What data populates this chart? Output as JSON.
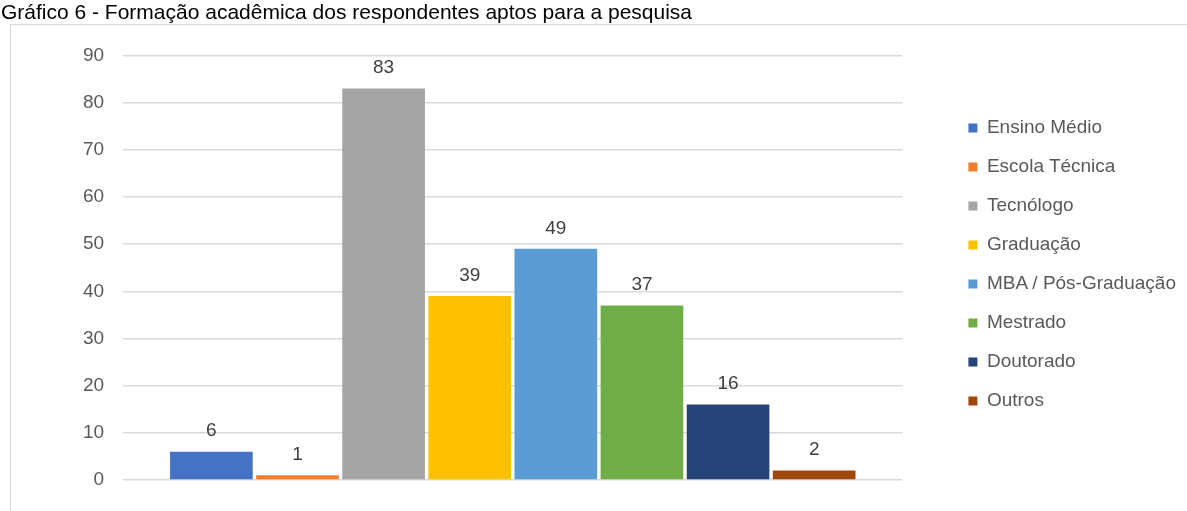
{
  "chart_data": {
    "type": "bar",
    "title": "Gráfico 6 - Formação acadêmica dos respondentes aptos para a pesquisa",
    "categories": [
      null
    ],
    "series": [
      {
        "name": "Ensino Médio",
        "color": "#4472c4",
        "values": [
          6
        ]
      },
      {
        "name": "Escola Técnica",
        "color": "#ed7d31",
        "values": [
          1
        ]
      },
      {
        "name": "Tecnólogo",
        "color": "#a5a5a5",
        "values": [
          83
        ]
      },
      {
        "name": "Graduação",
        "color": "#ffc000",
        "values": [
          39
        ]
      },
      {
        "name": "MBA / Pós-Graduação",
        "color": "#5b9bd5",
        "values": [
          49
        ]
      },
      {
        "name": "Mestrado",
        "color": "#70ad47",
        "values": [
          37
        ]
      },
      {
        "name": "Doutorado",
        "color": "#264478",
        "values": [
          16
        ]
      },
      {
        "name": "Outros",
        "color": "#9e480e",
        "values": [
          2
        ]
      }
    ],
    "ylim": [
      0,
      90
    ],
    "yticks": [
      0,
      10,
      20,
      30,
      40,
      50,
      60,
      70,
      80,
      90
    ],
    "grid": "y",
    "legend": "right",
    "data_labels": true
  }
}
